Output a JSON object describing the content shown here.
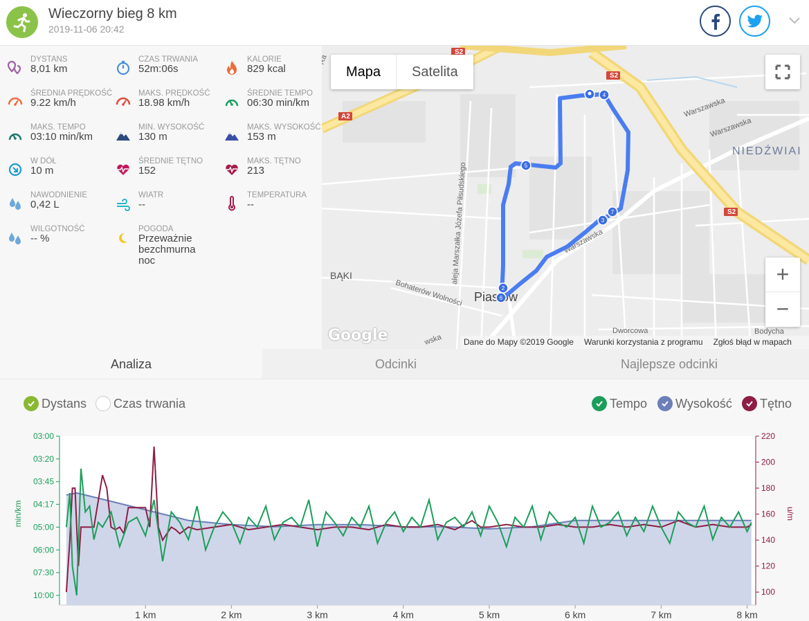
{
  "header": {
    "title": "Wieczorny bieg 8 km",
    "date": "2019-11-06 20:42",
    "logo_color": "#8bc34a"
  },
  "stats": [
    {
      "label": "DYSTANS",
      "value": "8,01 km",
      "icon": "location-pins-icon",
      "color": "#9c5fa5"
    },
    {
      "label": "CZAS TRWANIA",
      "value": "52m:06s",
      "icon": "stopwatch-icon",
      "color": "#4a90d9"
    },
    {
      "label": "KALORIE",
      "value": "829 kcal",
      "icon": "flame-icon",
      "color": "#ef6c3c"
    },
    {
      "label": "ŚREDNIA PRĘDKOŚĆ",
      "value": "9.22 km/h",
      "icon": "speedometer-icon",
      "color": "#ef6c3c"
    },
    {
      "label": "MAKS. PRĘDKOŚĆ",
      "value": "18.98 km/h",
      "icon": "speedometer-icon",
      "color": "#e24a3a"
    },
    {
      "label": "ŚREDNIE TEMPO",
      "value": "06:30 min/km",
      "icon": "pace-gauge-icon",
      "color": "#1b9e5b"
    },
    {
      "label": "MAKS. TEMPO",
      "value": "03:10 min/km",
      "icon": "pace-gauge-icon",
      "color": "#1b7a6b"
    },
    {
      "label": "MIN. WYSOKOŚĆ",
      "value": "130 m",
      "icon": "mountain-icon",
      "color": "#2c4a7e"
    },
    {
      "label": "MAKS. WYSOKOŚĆ",
      "value": "153 m",
      "icon": "mountain-icon",
      "color": "#3a4fa8"
    },
    {
      "label": "W DÓŁ",
      "value": "10 m",
      "icon": "descent-icon",
      "color": "#1b9bd1"
    },
    {
      "label": "ŚREDNIE TĘTNO",
      "value": "152",
      "icon": "heart-rate-icon",
      "color": "#c2185b"
    },
    {
      "label": "MAKS. TĘTNO",
      "value": "213",
      "icon": "heart-rate-icon",
      "color": "#a61c4a"
    },
    {
      "label": "NAWODNIENIE",
      "value": "0,42 L",
      "icon": "water-drops-icon",
      "color": "#6fa8dc"
    },
    {
      "label": "WIATR",
      "value": "--",
      "icon": "wind-icon",
      "color": "#26b5c9"
    },
    {
      "label": "TEMPERATURA",
      "value": "--",
      "icon": "thermometer-icon",
      "color": "#a61c4a"
    },
    {
      "label": "WILGOTNOŚĆ",
      "value": "-- %",
      "icon": "humidity-drops-icon",
      "color": "#6fa8dc"
    },
    {
      "label": "POGODA",
      "value": "Przeważnie bezchmurna noc",
      "icon": "moon-icon",
      "color": "#f5c518"
    }
  ],
  "map": {
    "map_btn": "Mapa",
    "satellite_btn": "Satelita",
    "zoom_in": "+",
    "zoom_out": "−",
    "footer": [
      "Dane do Mapy ©2019 Google",
      "Warunki korzystania z programu",
      "Zgłoś błąd w mapach"
    ],
    "google_logo": "Google",
    "labels": {
      "niedzwiadek": "NIEDŹWIAI",
      "baki": "BĄKI",
      "piastow": "Piastów",
      "warszawska1": "Warszawska",
      "warszawska2": "Warszawska",
      "warszawska3": "Warszawska",
      "pilsudskiego": "aleja Marszałka Józefa Piłsudskiego",
      "bohaterow": "Bohaterów Wolności",
      "dworcowa": "Dworcowa",
      "bodycha": "Bodycha",
      "s2a": "S2",
      "s2b": "S2",
      "s2c": "S2",
      "a2": "A2",
      "ra": "Ra",
      "wska": "wska"
    },
    "route_color": "#4a7df0",
    "markers": [
      "2",
      "3",
      "4",
      "5",
      "6",
      "7"
    ]
  },
  "tabs": [
    "Analiza",
    "Odcinki",
    "Najlepsze odcinki"
  ],
  "analysis": {
    "toggles_left": [
      {
        "label": "Dystans",
        "checked": true,
        "color": "#8bb833"
      },
      {
        "label": "Czas trwania",
        "checked": false,
        "color": "#ffffff"
      }
    ],
    "toggles_right": [
      {
        "label": "Tempo",
        "checked": true,
        "color": "#1b9e5b"
      },
      {
        "label": "Wysokość",
        "checked": true,
        "color": "#6b7fb8"
      },
      {
        "label": "Tętno",
        "checked": true,
        "color": "#8e1c45"
      }
    ],
    "left_axis_label": "min/km",
    "right_axis_label": "u/m",
    "left_ticks": [
      "03:00",
      "03:20",
      "03:45",
      "04:17",
      "05:00",
      "06:00",
      "07:30",
      "10:00"
    ],
    "right_ticks": [
      "220",
      "200",
      "180",
      "160",
      "140",
      "120",
      "100"
    ],
    "x_ticks": [
      "1 km",
      "2 km",
      "3 km",
      "4 km",
      "5 km",
      "6 km",
      "7 km",
      "8 km"
    ]
  },
  "chart_data": {
    "type": "line",
    "x_unit": "km",
    "xlim": [
      0,
      8.1
    ],
    "series": [
      {
        "name": "Tętno",
        "axis": "right",
        "color": "#8e1c45",
        "x": [
          0.08,
          0.12,
          0.15,
          0.18,
          0.22,
          0.25,
          0.3,
          0.4,
          0.5,
          0.55,
          0.6,
          0.65,
          0.7,
          0.75,
          0.8,
          0.9,
          1.0,
          1.05,
          1.1,
          1.15,
          1.2,
          1.25,
          1.3,
          1.35,
          1.4,
          1.5,
          1.6,
          1.8,
          2.0,
          2.2,
          2.4,
          2.6,
          2.8,
          3.0,
          3.2,
          3.4,
          3.6,
          3.8,
          4.0,
          4.2,
          4.4,
          4.6,
          4.8,
          4.9,
          5.0,
          5.2,
          5.4,
          5.6,
          5.8,
          6.0,
          6.2,
          6.4,
          6.6,
          6.8,
          7.0,
          7.2,
          7.4,
          7.6,
          7.8,
          8.0,
          8.05
        ],
        "y": [
          100,
          140,
          180,
          180,
          120,
          150,
          150,
          150,
          190,
          180,
          150,
          148,
          150,
          145,
          165,
          165,
          165,
          150,
          212,
          150,
          140,
          145,
          150,
          148,
          145,
          150,
          148,
          150,
          152,
          148,
          150,
          152,
          150,
          148,
          150,
          150,
          148,
          152,
          150,
          150,
          152,
          148,
          155,
          150,
          150,
          152,
          150,
          150,
          152,
          150,
          150,
          152,
          150,
          152,
          150,
          155,
          150,
          152,
          150,
          150,
          152
        ]
      },
      {
        "name": "Tempo",
        "axis": "left",
        "color": "#1b9e5b",
        "x": [
          0.08,
          0.12,
          0.15,
          0.2,
          0.25,
          0.3,
          0.35,
          0.4,
          0.45,
          0.5,
          0.6,
          0.7,
          0.8,
          0.9,
          1.0,
          1.1,
          1.2,
          1.3,
          1.4,
          1.5,
          1.6,
          1.7,
          1.8,
          1.9,
          2.0,
          2.1,
          2.2,
          2.3,
          2.4,
          2.5,
          2.6,
          2.7,
          2.8,
          2.9,
          3.0,
          3.1,
          3.2,
          3.3,
          3.4,
          3.5,
          3.6,
          3.7,
          3.8,
          3.9,
          4.0,
          4.1,
          4.2,
          4.3,
          4.4,
          4.5,
          4.6,
          4.7,
          4.8,
          4.9,
          5.0,
          5.1,
          5.2,
          5.3,
          5.4,
          5.5,
          5.6,
          5.7,
          5.8,
          5.9,
          6.0,
          6.1,
          6.2,
          6.3,
          6.4,
          6.5,
          6.6,
          6.7,
          6.8,
          6.9,
          7.0,
          7.1,
          7.2,
          7.3,
          7.4,
          7.5,
          7.6,
          7.7,
          7.8,
          7.9,
          8.0,
          8.05
        ],
        "y": [
          300,
          240,
          420,
          600,
          210,
          270,
          260,
          330,
          290,
          300,
          270,
          350,
          290,
          280,
          320,
          250,
          400,
          270,
          290,
          330,
          260,
          360,
          300,
          270,
          290,
          340,
          280,
          300,
          260,
          330,
          290,
          280,
          300,
          250,
          350,
          270,
          290,
          320,
          280,
          300,
          260,
          340,
          290,
          270,
          310,
          280,
          300,
          250,
          330,
          290,
          280,
          300,
          270,
          320,
          260,
          290,
          350,
          280,
          300,
          260,
          330,
          270,
          290,
          300,
          280,
          340,
          260,
          300,
          290,
          270,
          320,
          280,
          310,
          260,
          300,
          340,
          270,
          290,
          300,
          260,
          330,
          280,
          300,
          270,
          310,
          290
        ]
      },
      {
        "name": "Wysokość",
        "axis": "hidden",
        "color": "#6b7fb8",
        "x": [
          0.08,
          0.2,
          0.5,
          1.0,
          1.5,
          2.0,
          2.5,
          3.0,
          3.5,
          4.0,
          4.5,
          5.0,
          5.5,
          6.0,
          6.5,
          7.0,
          7.5,
          8.0,
          8.05
        ],
        "y": [
          152,
          153,
          150,
          145,
          140,
          138,
          137,
          138,
          138,
          137,
          137,
          136,
          137,
          140,
          140,
          140,
          140,
          140,
          140
        ]
      }
    ]
  }
}
